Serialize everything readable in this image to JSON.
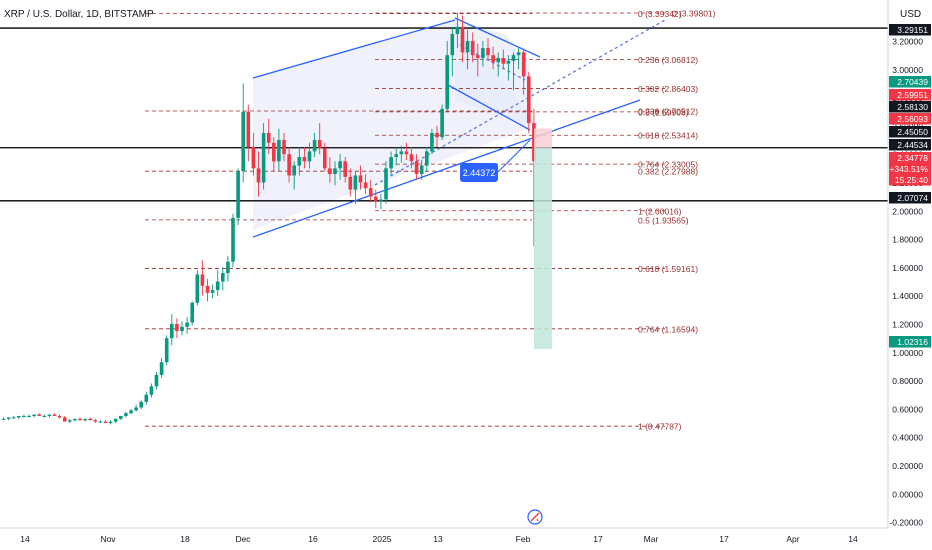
{
  "header": {
    "title": "XRP / U.S. Dollar, 1D, BITSTAMP",
    "currency": "USD"
  },
  "colors": {
    "bull": "#089981",
    "bear": "#f23645",
    "fib": "#9a2e2e",
    "channel": "#2962ff",
    "channel_fill": "#eef0fb",
    "black": "#000000",
    "tag_green": "#089981",
    "tag_red": "#f23645",
    "tag_dark": "#131722",
    "tag_blue": "#2962ff",
    "target_zone": "#bfe6dc",
    "stop_zone": "#f7cfd2"
  },
  "chart_data": {
    "type": "candlestick",
    "symbol": "XRP / U.S. Dollar",
    "interval": "1D",
    "exchange": "BITSTAMP",
    "x_ticks": [
      "14",
      "Nov",
      "18",
      "Dec",
      "16",
      "2025",
      "13",
      "Feb",
      "17",
      "Mar",
      "17",
      "Apr",
      "14"
    ],
    "y_ticks": [
      "3.20000",
      "3.00000",
      "2.80000",
      "2.60000",
      "2.40000",
      "2.20000",
      "2.00000",
      "1.80000",
      "1.60000",
      "1.40000",
      "1.20000",
      "1.00000",
      "0.80000",
      "0.60000",
      "0.40000",
      "0.20000",
      "0.00000",
      "-0.20000"
    ],
    "ylim": [
      -0.25,
      3.45
    ],
    "price_tags": [
      {
        "label": "3.29151",
        "style": "dark"
      },
      {
        "label": "2.70439",
        "style": "green"
      },
      {
        "label": "2.59951",
        "style": "red"
      },
      {
        "label": "2.58130",
        "style": "dark"
      },
      {
        "label": "2.56093",
        "style": "red"
      },
      {
        "label": "2.45050",
        "style": "dark"
      },
      {
        "label": "2.44534",
        "style": "dark"
      },
      {
        "label": "2.34778",
        "style": "red"
      },
      {
        "label": "+343.51%",
        "style": "red"
      },
      {
        "label": "15:25:40",
        "style": "red"
      },
      {
        "label": "2.07074",
        "style": "dark"
      },
      {
        "label": "1.02316",
        "style": "green"
      }
    ],
    "fib_set_1": [
      {
        "label": "0 (3.39342)",
        "value": 3.39342
      },
      {
        "label": "0.236 (2.70512)",
        "value": 2.70512
      },
      {
        "label": "0.382 (2.27988)",
        "value": 2.27988
      },
      {
        "label": "0.5 (1.93565)",
        "value": 1.93565
      }
    ],
    "fib_set_2": [
      {
        "label": "0 (3.39801)",
        "value": 3.39801
      },
      {
        "label": "0.236 (3.06812)",
        "value": 3.06812
      },
      {
        "label": "0.382 (2.86403)",
        "value": 2.86403
      },
      {
        "label": "0.5 (2.69908)",
        "value": 2.69908
      },
      {
        "label": "0.618 (2.53414)",
        "value": 2.53414
      },
      {
        "label": "0.764 (2.33005)",
        "value": 2.33005
      },
      {
        "label": "1 (2.00016)",
        "value": 2.00016
      },
      {
        "label": "0.618 (1.59161)",
        "value": 1.59161
      },
      {
        "label": "0.764 (1.16594)",
        "value": 1.16594
      },
      {
        "label": "1 (0.47787)",
        "value": 0.47787
      }
    ],
    "horizontal_levels": [
      3.29151,
      2.44534,
      2.07074
    ],
    "annotation_label": "2.44372",
    "candles": [
      [
        0.53,
        0.54,
        0.52,
        0.53
      ],
      [
        0.53,
        0.54,
        0.52,
        0.54
      ],
      [
        0.54,
        0.55,
        0.53,
        0.54
      ],
      [
        0.54,
        0.55,
        0.53,
        0.55
      ],
      [
        0.55,
        0.56,
        0.54,
        0.55
      ],
      [
        0.55,
        0.56,
        0.54,
        0.55
      ],
      [
        0.55,
        0.56,
        0.54,
        0.56
      ],
      [
        0.56,
        0.57,
        0.55,
        0.55
      ],
      [
        0.55,
        0.56,
        0.54,
        0.55
      ],
      [
        0.55,
        0.56,
        0.54,
        0.56
      ],
      [
        0.56,
        0.57,
        0.55,
        0.55
      ],
      [
        0.55,
        0.56,
        0.53,
        0.54
      ],
      [
        0.54,
        0.55,
        0.52,
        0.51
      ],
      [
        0.51,
        0.53,
        0.5,
        0.52
      ],
      [
        0.52,
        0.53,
        0.51,
        0.53
      ],
      [
        0.53,
        0.54,
        0.52,
        0.52
      ],
      [
        0.52,
        0.53,
        0.51,
        0.53
      ],
      [
        0.53,
        0.54,
        0.52,
        0.52
      ],
      [
        0.52,
        0.53,
        0.5,
        0.51
      ],
      [
        0.51,
        0.52,
        0.5,
        0.51
      ],
      [
        0.51,
        0.52,
        0.5,
        0.5
      ],
      [
        0.5,
        0.52,
        0.49,
        0.51
      ],
      [
        0.51,
        0.53,
        0.5,
        0.53
      ],
      [
        0.53,
        0.55,
        0.52,
        0.55
      ],
      [
        0.55,
        0.58,
        0.54,
        0.57
      ],
      [
        0.57,
        0.6,
        0.56,
        0.59
      ],
      [
        0.59,
        0.63,
        0.58,
        0.61
      ],
      [
        0.61,
        0.66,
        0.6,
        0.65
      ],
      [
        0.65,
        0.72,
        0.63,
        0.7
      ],
      [
        0.7,
        0.78,
        0.68,
        0.76
      ],
      [
        0.76,
        0.86,
        0.74,
        0.84
      ],
      [
        0.84,
        0.96,
        0.82,
        0.93
      ],
      [
        0.93,
        1.12,
        0.91,
        1.1
      ],
      [
        1.1,
        1.27,
        1.05,
        1.2
      ],
      [
        1.2,
        1.24,
        1.1,
        1.15
      ],
      [
        1.15,
        1.22,
        1.12,
        1.18
      ],
      [
        1.18,
        1.25,
        1.13,
        1.21
      ],
      [
        1.21,
        1.36,
        1.19,
        1.35
      ],
      [
        1.35,
        1.58,
        1.33,
        1.55
      ],
      [
        1.55,
        1.65,
        1.4,
        1.47
      ],
      [
        1.47,
        1.52,
        1.36,
        1.42
      ],
      [
        1.42,
        1.48,
        1.38,
        1.44
      ],
      [
        1.44,
        1.58,
        1.4,
        1.5
      ],
      [
        1.5,
        1.6,
        1.44,
        1.56
      ],
      [
        1.56,
        1.68,
        1.5,
        1.64
      ],
      [
        1.64,
        1.98,
        1.6,
        1.95
      ],
      [
        1.95,
        2.3,
        1.9,
        2.28
      ],
      [
        2.28,
        2.9,
        2.2,
        2.7
      ],
      [
        2.7,
        2.75,
        2.35,
        2.45
      ],
      [
        2.45,
        2.55,
        2.25,
        2.3
      ],
      [
        2.3,
        2.42,
        2.1,
        2.2
      ],
      [
        2.2,
        2.62,
        2.15,
        2.55
      ],
      [
        2.55,
        2.65,
        2.4,
        2.48
      ],
      [
        2.48,
        2.52,
        2.28,
        2.35
      ],
      [
        2.35,
        2.58,
        2.28,
        2.5
      ],
      [
        2.5,
        2.55,
        2.35,
        2.4
      ],
      [
        2.4,
        2.45,
        2.2,
        2.25
      ],
      [
        2.25,
        2.35,
        2.15,
        2.32
      ],
      [
        2.32,
        2.45,
        2.25,
        2.38
      ],
      [
        2.38,
        2.45,
        2.3,
        2.35
      ],
      [
        2.35,
        2.48,
        2.3,
        2.42
      ],
      [
        2.42,
        2.55,
        2.38,
        2.5
      ],
      [
        2.5,
        2.62,
        2.4,
        2.44
      ],
      [
        2.44,
        2.48,
        2.28,
        2.3
      ],
      [
        2.3,
        2.38,
        2.2,
        2.26
      ],
      [
        2.26,
        2.35,
        2.18,
        2.3
      ],
      [
        2.3,
        2.4,
        2.22,
        2.35
      ],
      [
        2.35,
        2.38,
        2.2,
        2.24
      ],
      [
        2.24,
        2.3,
        2.1,
        2.15
      ],
      [
        2.15,
        2.28,
        2.05,
        2.25
      ],
      [
        2.25,
        2.32,
        2.15,
        2.2
      ],
      [
        2.2,
        2.26,
        2.12,
        2.16
      ],
      [
        2.16,
        2.22,
        2.06,
        2.1
      ],
      [
        2.1,
        2.15,
        2.02,
        2.07
      ],
      [
        2.07,
        2.12,
        2.01,
        2.08
      ],
      [
        2.08,
        2.35,
        2.05,
        2.3
      ],
      [
        2.3,
        2.42,
        2.25,
        2.38
      ],
      [
        2.38,
        2.45,
        2.32,
        2.4
      ],
      [
        2.4,
        2.46,
        2.34,
        2.42
      ],
      [
        2.42,
        2.48,
        2.36,
        2.4
      ],
      [
        2.4,
        2.45,
        2.3,
        2.35
      ],
      [
        2.35,
        2.4,
        2.22,
        2.26
      ],
      [
        2.26,
        2.36,
        2.22,
        2.32
      ],
      [
        2.32,
        2.45,
        2.28,
        2.42
      ],
      [
        2.42,
        2.58,
        2.4,
        2.55
      ],
      [
        2.55,
        2.6,
        2.45,
        2.52
      ],
      [
        2.52,
        2.75,
        2.5,
        2.72
      ],
      [
        2.72,
        3.2,
        2.7,
        3.1
      ],
      [
        3.1,
        3.3,
        2.95,
        3.25
      ],
      [
        3.25,
        3.4,
        3.15,
        3.3
      ],
      [
        3.3,
        3.38,
        3.05,
        3.12
      ],
      [
        3.12,
        3.28,
        3.0,
        3.2
      ],
      [
        3.2,
        3.26,
        3.05,
        3.1
      ],
      [
        3.1,
        3.18,
        2.95,
        3.08
      ],
      [
        3.08,
        3.2,
        3.02,
        3.15
      ],
      [
        3.15,
        3.22,
        3.06,
        3.1
      ],
      [
        3.1,
        3.16,
        3.0,
        3.05
      ],
      [
        3.05,
        3.12,
        2.95,
        3.08
      ],
      [
        3.08,
        3.14,
        3.0,
        3.04
      ],
      [
        3.04,
        3.1,
        2.92,
        3.06
      ],
      [
        3.06,
        3.12,
        2.85,
        3.1
      ],
      [
        3.1,
        3.15,
        3.0,
        3.12
      ],
      [
        3.12,
        3.14,
        2.82,
        2.95
      ],
      [
        2.95,
        2.98,
        2.55,
        2.62
      ],
      [
        2.62,
        2.72,
        1.75,
        2.35
      ]
    ]
  }
}
